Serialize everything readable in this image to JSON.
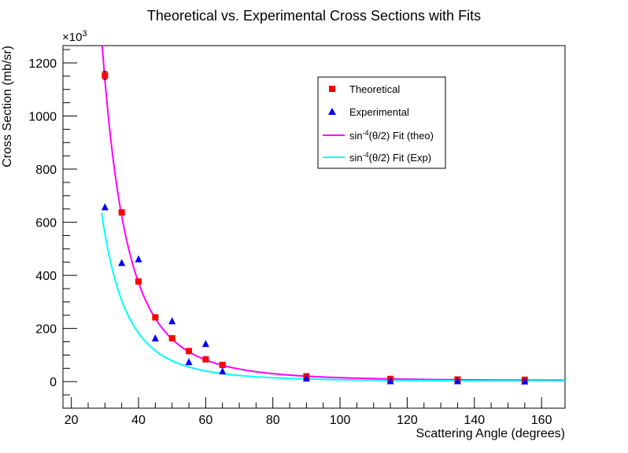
{
  "chart_data": {
    "type": "scatter",
    "title": "Theoretical vs. Experimental Cross Sections with Fits",
    "xlabel": "Scattering Angle (degrees)",
    "ylabel": "Cross Section (mb/sr)",
    "y_multiplier_label": "×10",
    "y_multiplier_exponent": "3",
    "xlim": [
      17.5,
      167
    ],
    "ylim": [
      -100,
      1265
    ],
    "x_ticks": [
      20,
      40,
      60,
      80,
      100,
      120,
      140,
      160
    ],
    "x_tick_labels": [
      "20",
      "40",
      "60",
      "80",
      "100",
      "120",
      "140",
      "160"
    ],
    "y_ticks": [
      0,
      200,
      400,
      600,
      800,
      1000,
      1200
    ],
    "y_tick_labels": [
      "0",
      "200",
      "400",
      "600",
      "800",
      "1000",
      "1200"
    ],
    "grid": false,
    "legend_position": "top-right",
    "series": [
      {
        "name": "Theoretical",
        "kind": "points",
        "marker": "square",
        "color": "#ff0000",
        "x": [
          30,
          35,
          40,
          45,
          50,
          55,
          60,
          65,
          90,
          115,
          135,
          155
        ],
        "y": [
          1153,
          637,
          377,
          242,
          163,
          115,
          84,
          63,
          20,
          10,
          8,
          7
        ],
        "yerr": [
          15,
          8,
          6,
          5,
          4,
          3,
          2,
          2,
          1,
          1,
          1,
          1
        ]
      },
      {
        "name": "Experimental",
        "kind": "points",
        "marker": "triangle",
        "color": "#0000ff",
        "x": [
          30,
          35,
          40,
          45,
          50,
          55,
          60,
          65,
          90,
          115,
          135,
          155
        ],
        "y": [
          657,
          447,
          461,
          163,
          228,
          74,
          142,
          39,
          12,
          2,
          2,
          1
        ]
      },
      {
        "name": "sin^{-4}(θ/2) Fit (theo)",
        "legend_prefix": "sin",
        "legend_sup": "-4",
        "legend_suffix": "(θ/2) Fit (theo)",
        "kind": "fit",
        "color": "#ff00ff",
        "A": 5.1,
        "x_start": 29
      },
      {
        "name": "sin^{-4}(θ/2) Fit (Exp)",
        "legend_prefix": "sin",
        "legend_sup": "-4",
        "legend_suffix": "(θ/2) Fit (Exp)",
        "kind": "fit",
        "color": "#00ffff",
        "A": 2.5,
        "x_start": 29
      }
    ]
  }
}
